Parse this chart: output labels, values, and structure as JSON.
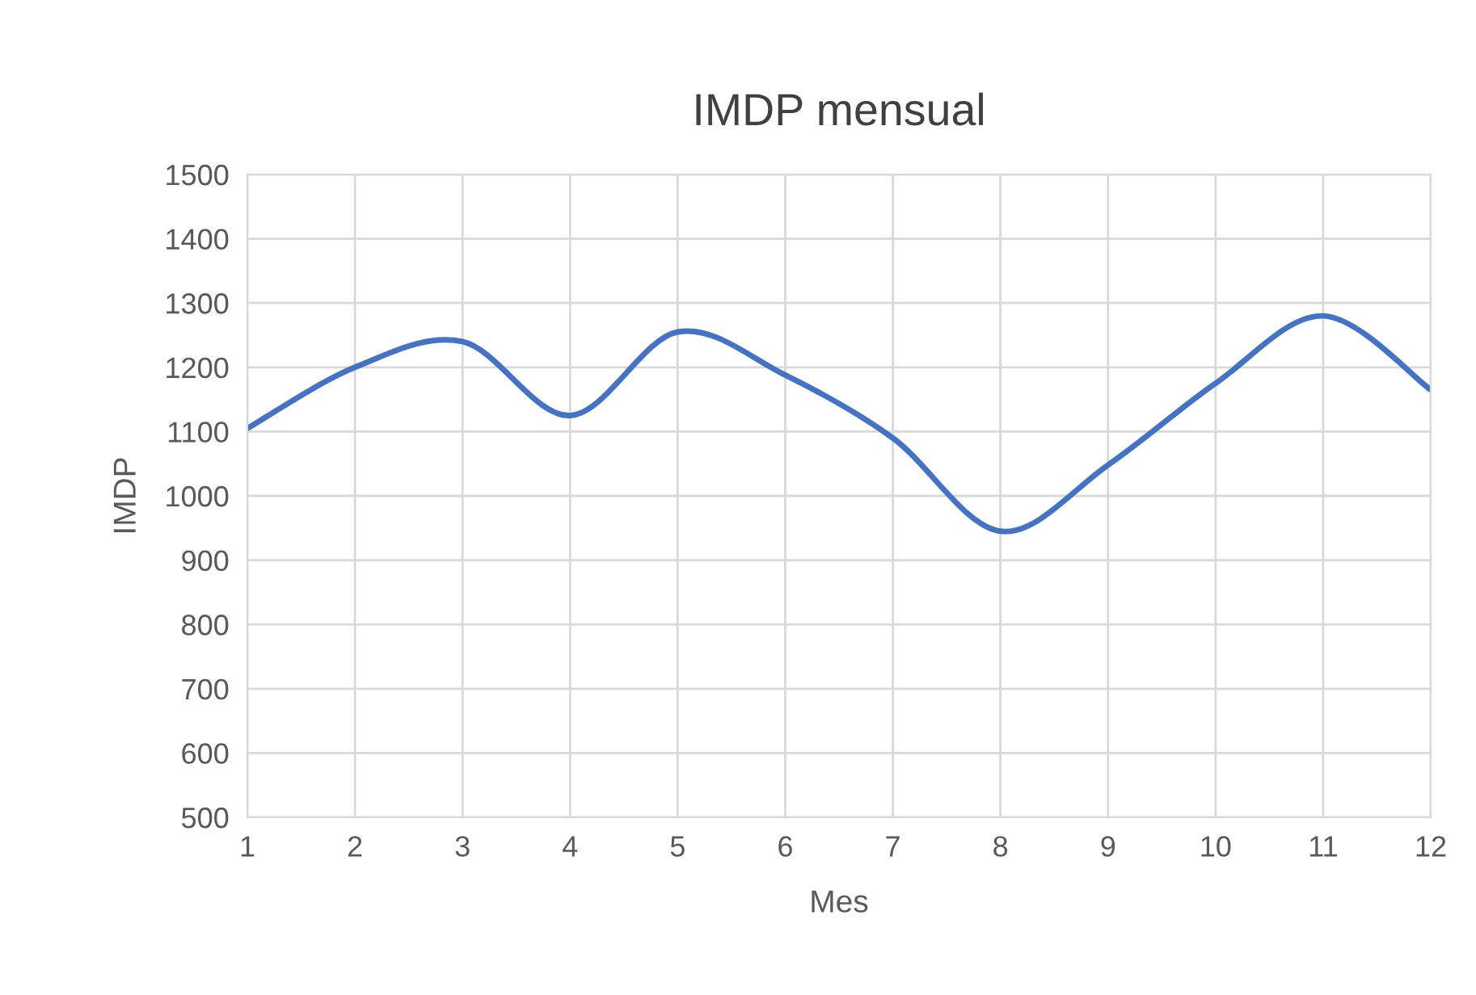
{
  "chart_data": {
    "type": "line",
    "title": "IMDP mensual",
    "xlabel": "Mes",
    "ylabel": "IMDP",
    "x": [
      1,
      2,
      3,
      4,
      5,
      6,
      7,
      8,
      9,
      10,
      11,
      12
    ],
    "series": [
      {
        "color": "#4472c4",
        "values": [
          1105,
          1200,
          1240,
          1125,
          1255,
          1188,
          1090,
          945,
          1048,
          1175,
          1280,
          1165
        ]
      }
    ],
    "xlim": [
      1,
      12
    ],
    "xticks": [
      1,
      2,
      3,
      4,
      5,
      6,
      7,
      8,
      9,
      10,
      11,
      12
    ],
    "ylim": [
      500,
      1500
    ],
    "yticks": [
      500,
      600,
      700,
      800,
      900,
      1000,
      1100,
      1200,
      1300,
      1400,
      1500
    ],
    "grid": true,
    "marker": "none",
    "line_style": "solid"
  }
}
